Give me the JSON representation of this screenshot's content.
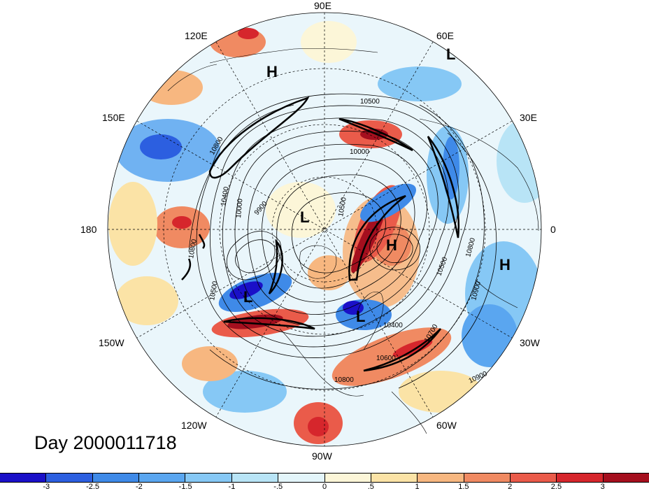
{
  "map": {
    "projection": "north-polar-stereographic",
    "longitude_labels": {
      "lon_90E": "90E",
      "lon_60E": "60E",
      "lon_30E": "30E",
      "lon_0": "0",
      "lon_30W": "30W",
      "lon_60W": "60W",
      "lon_90W": "90W",
      "lon_120W": "120W",
      "lon_150W": "150W",
      "lon_180": "180",
      "lon_150E": "150E",
      "lon_120E": "120E"
    },
    "pressure_centers": [
      {
        "type": "H",
        "label": "H"
      },
      {
        "type": "L",
        "label": "L"
      },
      {
        "type": "L",
        "label": "L"
      },
      {
        "type": "H",
        "label": "H"
      },
      {
        "type": "H",
        "label": "H"
      },
      {
        "type": "L",
        "label": "L"
      },
      {
        "type": "L",
        "label": "L"
      }
    ],
    "contour_labels": [
      "10800",
      "10400",
      "10000",
      "9900",
      "10500",
      "10000",
      "10500",
      "10800",
      "10900",
      "10500",
      "10400",
      "10600",
      "10800",
      "10900",
      "10700",
      "10500",
      "10800"
    ]
  },
  "day_label": "Day 2000011718",
  "colorbar": {
    "colors": [
      "#1a10c8",
      "#2c5fe0",
      "#3f8ae8",
      "#5aa6f0",
      "#86c8f5",
      "#b8e4f6",
      "#e3f5fa",
      "#fcf6d8",
      "#fbe3a6",
      "#f7b780",
      "#f08a62",
      "#ea5b4a",
      "#d6262c",
      "#a50f1e"
    ],
    "ticks": [
      "-3",
      "-2.5",
      "-2",
      "-1.5",
      "-1",
      "-.5",
      "0",
      ".5",
      "1",
      "1.5",
      "2",
      "2.5",
      "3"
    ]
  }
}
